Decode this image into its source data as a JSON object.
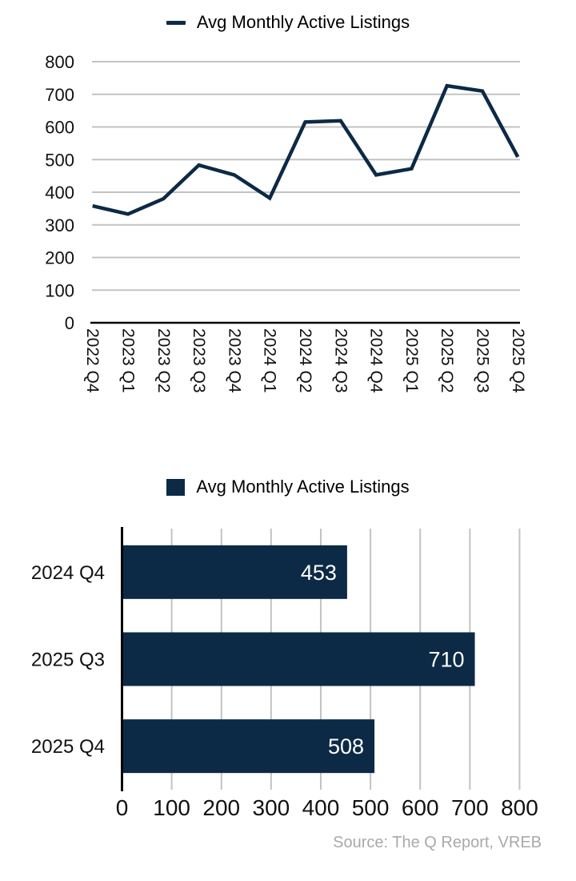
{
  "colors": {
    "series_navy": "#0c2a45",
    "gridline": "#c3c3c3",
    "axis": "#000000",
    "tick_text": "#111111",
    "bar_value_text": "#ffffff",
    "source_text": "#a9a9a9"
  },
  "top_chart": {
    "legend_label": "Avg Monthly Active Listings"
  },
  "bottom_chart": {
    "legend_label": "Avg Monthly Active Listings"
  },
  "source_note": "Source: The Q Report, VREB",
  "chart_data": [
    {
      "type": "line",
      "title": "",
      "legend": [
        "Avg Monthly Active Listings"
      ],
      "legend_position": "top-center",
      "categories": [
        "2022 Q4",
        "2023 Q1",
        "2023 Q2",
        "2023 Q3",
        "2023 Q4",
        "2024 Q1",
        "2024 Q2",
        "2024 Q3",
        "2024 Q4",
        "2025 Q1",
        "2025 Q2",
        "2025 Q3",
        "2025 Q4"
      ],
      "values": [
        358,
        333,
        380,
        483,
        453,
        382,
        615,
        619,
        453,
        472,
        726,
        710,
        508
      ],
      "ylim": [
        0,
        800
      ],
      "ytick_step": 100,
      "yticks": [
        0,
        100,
        200,
        300,
        400,
        500,
        600,
        700,
        800
      ],
      "grid": "horizontal",
      "x_label_rotation": 90
    },
    {
      "type": "bar",
      "orientation": "horizontal",
      "title": "",
      "legend": [
        "Avg Monthly Active Listings"
      ],
      "legend_position": "top-center",
      "categories": [
        "2024 Q4",
        "2025 Q3",
        "2025 Q4"
      ],
      "values": [
        453,
        710,
        508
      ],
      "data_labels": [
        "453",
        "710",
        "508"
      ],
      "xlim": [
        0,
        800
      ],
      "xtick_step": 100,
      "xticks": [
        0,
        100,
        200,
        300,
        400,
        500,
        600,
        700,
        800
      ],
      "grid": "vertical"
    }
  ]
}
